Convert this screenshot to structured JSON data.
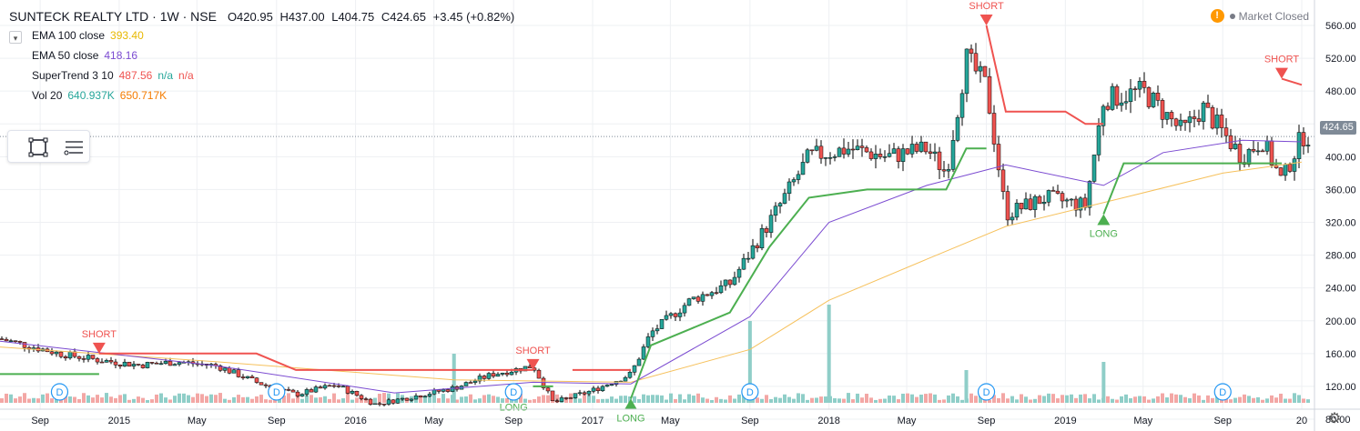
{
  "legend": {
    "symbol": "SUNTECK REALTY LTD · 1W · NSE",
    "open": "O420.95",
    "high": "H437.00",
    "low": "L404.75",
    "close": "C424.65",
    "change": "+3.45 (+0.82%)",
    "indicators": [
      {
        "name": "EMA 100 close",
        "values": [
          "393.40"
        ],
        "colors": [
          "#e8b800"
        ]
      },
      {
        "name": "EMA 50 close",
        "values": [
          "418.16"
        ],
        "colors": [
          "#7b4bd1"
        ]
      },
      {
        "name": "SuperTrend 3 10",
        "values": [
          "487.56",
          "n/a",
          "n/a"
        ],
        "colors": [
          "#ef5350",
          "#26a69a",
          "#ef5350"
        ]
      },
      {
        "name": "Vol 20",
        "values": [
          "640.937K",
          "650.717K"
        ],
        "colors": [
          "#26a69a",
          "#f57c00"
        ]
      }
    ]
  },
  "market_status": {
    "warning_icon": "!",
    "label": "Market Closed"
  },
  "last_price_label": "424.65",
  "toolbar": {
    "icons": [
      "rectangle-select-icon",
      "list-icon"
    ]
  },
  "event_marker_label": "D",
  "colors": {
    "up": "#26a69a",
    "down": "#ef5350",
    "wick": "#000000",
    "ema100": "#f6c15c",
    "ema50": "#7b4bd1",
    "st_up": "#4caf50",
    "st_down": "#ef5350",
    "vol_up": "#8fcec8",
    "vol_down": "#f3a7a5"
  },
  "chart_data": {
    "type": "candlestick",
    "interval": "1W",
    "y_axis": {
      "ticks": [
        80,
        120,
        160,
        200,
        240,
        280,
        320,
        360,
        400,
        440,
        480,
        520,
        560
      ],
      "range": [
        62,
        575
      ]
    },
    "x_ticks": [
      {
        "label": "Sep",
        "date": "2014-09"
      },
      {
        "label": "2015",
        "date": "2015-01"
      },
      {
        "label": "May",
        "date": "2015-05"
      },
      {
        "label": "Sep",
        "date": "2015-09"
      },
      {
        "label": "2016",
        "date": "2016-01"
      },
      {
        "label": "May",
        "date": "2016-05"
      },
      {
        "label": "Sep",
        "date": "2016-09"
      },
      {
        "label": "2017",
        "date": "2017-01"
      },
      {
        "label": "May",
        "date": "2017-05"
      },
      {
        "label": "Sep",
        "date": "2017-09"
      },
      {
        "label": "2018",
        "date": "2018-01"
      },
      {
        "label": "May",
        "date": "2018-05"
      },
      {
        "label": "Sep",
        "date": "2018-09"
      },
      {
        "label": "2019",
        "date": "2019-01"
      },
      {
        "label": "May",
        "date": "2019-05"
      },
      {
        "label": "Sep",
        "date": "2019-09"
      },
      {
        "label": "20",
        "date": "2020-01"
      }
    ],
    "trend_path": [
      [
        "2014-07",
        178
      ],
      [
        "2014-10",
        160
      ],
      [
        "2014-12",
        152
      ],
      [
        "2015-02",
        146
      ],
      [
        "2015-04",
        150
      ],
      [
        "2015-06",
        145
      ],
      [
        "2015-08",
        125
      ],
      [
        "2015-10",
        110
      ],
      [
        "2015-12",
        122
      ],
      [
        "2016-02",
        98
      ],
      [
        "2016-04",
        108
      ],
      [
        "2016-06",
        118
      ],
      [
        "2016-08",
        135
      ],
      [
        "2016-10",
        145
      ],
      [
        "2016-11",
        100
      ],
      [
        "2017-01",
        115
      ],
      [
        "2017-03",
        135
      ],
      [
        "2017-04",
        185
      ],
      [
        "2017-06",
        225
      ],
      [
        "2017-08",
        245
      ],
      [
        "2017-10",
        320
      ],
      [
        "2017-12",
        400
      ],
      [
        "2018-02",
        410
      ],
      [
        "2018-04",
        400
      ],
      [
        "2018-06",
        410
      ],
      [
        "2018-07",
        380
      ],
      [
        "2018-08",
        520
      ],
      [
        "2018-09",
        485
      ],
      [
        "2018-10",
        330
      ],
      [
        "2018-12",
        350
      ],
      [
        "2019-02",
        340
      ],
      [
        "2019-03",
        470
      ],
      [
        "2019-05",
        480
      ],
      [
        "2019-07",
        430
      ],
      [
        "2019-08",
        460
      ],
      [
        "2019-10",
        400
      ],
      [
        "2019-11",
        420
      ],
      [
        "2019-12",
        370
      ],
      [
        "2020-01",
        425
      ]
    ],
    "series": [
      {
        "name": "EMA 100 close",
        "last": 393.4,
        "points": [
          [
            "2014-07",
            168
          ],
          [
            "2015-06",
            150
          ],
          [
            "2016-06",
            128
          ],
          [
            "2017-03",
            125
          ],
          [
            "2017-09",
            165
          ],
          [
            "2018-01",
            225
          ],
          [
            "2018-06",
            275
          ],
          [
            "2018-10",
            315
          ],
          [
            "2019-04",
            350
          ],
          [
            "2019-09",
            380
          ],
          [
            "2020-01",
            393.4
          ]
        ]
      },
      {
        "name": "EMA 50 close",
        "last": 418.16,
        "points": [
          [
            "2014-07",
            175
          ],
          [
            "2015-06",
            145
          ],
          [
            "2016-03",
            112
          ],
          [
            "2016-10",
            125
          ],
          [
            "2017-03",
            123
          ],
          [
            "2017-09",
            205
          ],
          [
            "2018-01",
            320
          ],
          [
            "2018-06",
            365
          ],
          [
            "2018-10",
            390
          ],
          [
            "2019-03",
            365
          ],
          [
            "2019-06",
            405
          ],
          [
            "2019-10",
            420
          ],
          [
            "2020-01",
            418.16
          ]
        ]
      },
      {
        "name": "SuperTrend 3 10",
        "last": 487.56,
        "up_segments": [
          [
            [
              "2014-07",
              135
            ],
            [
              "2014-12",
              135
            ]
          ],
          [
            [
              "2016-10",
              120
            ],
            [
              "2016-11",
              120
            ]
          ],
          [
            [
              "2017-03",
              105
            ],
            [
              "2017-04",
              170
            ],
            [
              "2017-06",
              190
            ],
            [
              "2017-08",
              210
            ],
            [
              "2017-10",
              290
            ],
            [
              "2017-12",
              350
            ],
            [
              "2018-03",
              360
            ],
            [
              "2018-07",
              360
            ],
            [
              "2018-08",
              410
            ],
            [
              "2018-09",
              410
            ]
          ],
          [
            [
              "2019-03",
              330
            ],
            [
              "2019-04",
              392
            ],
            [
              "2019-12",
              392
            ]
          ]
        ],
        "down_segments": [
          [
            [
              "2014-12",
              160
            ],
            [
              "2015-08",
              160
            ],
            [
              "2015-10",
              140
            ],
            [
              "2016-10",
              140
            ]
          ],
          [
            [
              "2016-12",
              140
            ],
            [
              "2017-03",
              140
            ]
          ],
          [
            [
              "2018-09",
              560
            ],
            [
              "2018-10",
              455
            ],
            [
              "2019-01",
              455
            ],
            [
              "2019-02",
              440
            ],
            [
              "2019-03",
              440
            ]
          ],
          [
            [
              "2019-12",
              495
            ],
            [
              "2020-01",
              487.56
            ]
          ]
        ]
      },
      {
        "name": "Vol 20",
        "values": [
          "640.937K",
          "650.717K"
        ],
        "relative_spikes": [
          [
            "2016-06",
            6
          ],
          [
            "2017-09",
            10
          ],
          [
            "2018-01",
            12
          ],
          [
            "2018-08",
            4
          ],
          [
            "2019-03",
            5
          ]
        ]
      }
    ],
    "signals": [
      {
        "label": "SHORT",
        "date": "2014-12",
        "price": 160
      },
      {
        "label": "LONG",
        "date": "2016-09",
        "price": 118
      },
      {
        "label": "SHORT",
        "date": "2016-10",
        "price": 140
      },
      {
        "label": "LONG",
        "date": "2017-03",
        "price": 105
      },
      {
        "label": "SHORT",
        "date": "2018-09",
        "price": 560
      },
      {
        "label": "LONG",
        "date": "2019-03",
        "price": 330
      },
      {
        "label": "SHORT",
        "date": "2019-12",
        "price": 495
      }
    ],
    "events": [
      "2014-10",
      "2015-09",
      "2016-09",
      "2017-09",
      "2018-09",
      "2019-09"
    ]
  }
}
